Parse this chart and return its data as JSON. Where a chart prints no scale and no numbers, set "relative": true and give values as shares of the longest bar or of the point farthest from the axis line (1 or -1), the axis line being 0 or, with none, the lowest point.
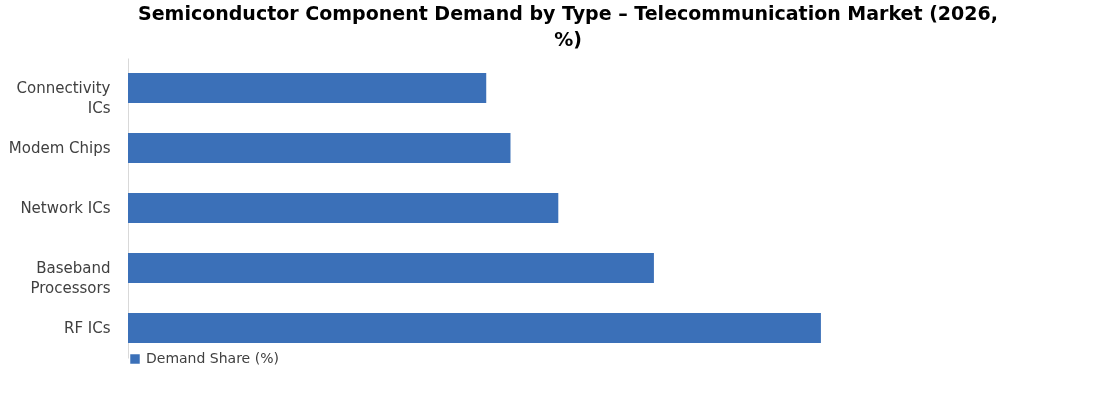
{
  "chart_data": {
    "type": "bar",
    "orientation": "horizontal",
    "relative": true,
    "title": "Semiconductor Component Demand by Type – Telecommunication Market (2026, %)",
    "categories": [
      "Connectivity ICs",
      "Modem Chips",
      "Network ICs",
      "Baseband Processors",
      "RF ICs"
    ],
    "series": [
      {
        "name": "Demand Share (%)",
        "color": "#3b70b8",
        "values": [
          0.517,
          0.552,
          0.621,
          0.759,
          1
        ]
      }
    ],
    "legend": "bottom"
  }
}
